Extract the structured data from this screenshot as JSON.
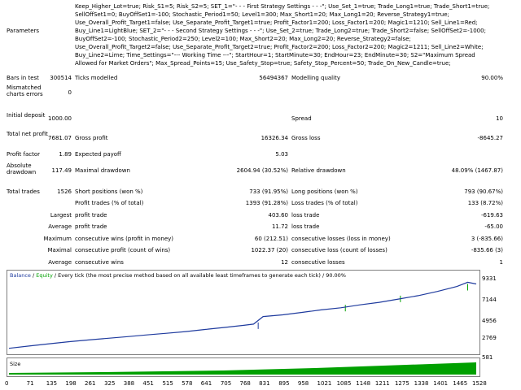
{
  "parameters": {
    "label": "Parameters",
    "lines": [
      "Keep_Higher_Lot=true; Risk_S1=5; Risk_S2=5; SET_1=\"- - - First Strategy Settings - - -\"; Use_Set_1=true; Trade_Long1=true; Trade_Short1=true;",
      "SellOffSet1=0; BuyOffSet1=-100; Stochastic_Period1=50; Level1=300; Max_Short1=20; Max_Long1=20; Reverse_Strategy1=true;",
      "Use_Overall_Profit_Target1=false; Use_Separate_Profit_Target1=true; Profit_Factor1=200; Loss_Factor1=200; Magic1=1210; Sell_Line1=Red;",
      "Buy_Line1=LightBlue; SET_2=\"- - - Second Strategy Settings - - -\"; Use_Set_2=true; Trade_Long2=true; Trade_Short2=false; SellOffSet2=-1000;",
      "BuyOffSet2=-100; Stochastic_Period2=250; Level2=100; Max_Short2=20; Max_Long2=20; Reverse_Strategy2=false;",
      "Use_Overall_Profit_Target2=false; Use_Separate_Profit_Target2=true; Profit_Factor2=200; Loss_Factor2=200; Magic2=1211; Sell_Line2=White;",
      "Buy_Line2=Lime; Time_Settings=\"--- Working Time ---\"; StartHour=1; StartMinute=30; EndHour=23; EndMinute=30; S2=\"Maximum Spread",
      "Allowed for Market Orders\"; Max_Spread_Points=15; Use_Safety_Stop=true; Safety_Stop_Percent=50; Trade_On_New_Candle=true;"
    ]
  },
  "stats": {
    "bars_in_test_label": "Bars in test",
    "bars_in_test": "300514",
    "ticks_modelled_label": "Ticks modelled",
    "ticks_modelled": "56494367",
    "modelling_quality_label": "Modelling quality",
    "modelling_quality": "90.00%",
    "mismatched_label": "Mismatched charts errors",
    "mismatched": "0",
    "initial_deposit_label": "Initial deposit",
    "initial_deposit": "1000.00",
    "spread_label": "Spread",
    "spread": "10",
    "total_net_profit_label": "Total net profit",
    "total_net_profit": "7681.07",
    "gross_profit_label": "Gross profit",
    "gross_profit": "16326.34",
    "gross_loss_label": "Gross loss",
    "gross_loss": "-8645.27",
    "profit_factor_label": "Profit factor",
    "profit_factor": "1.89",
    "expected_payoff_label": "Expected payoff",
    "expected_payoff": "5.03",
    "absolute_drawdown_label": "Absolute drawdown",
    "absolute_drawdown": "117.49",
    "maximal_drawdown_label": "Maximal drawdown",
    "maximal_drawdown": "2604.94 (30.52%)",
    "relative_drawdown_label": "Relative drawdown",
    "relative_drawdown": "48.09% (1467.87)",
    "total_trades_label": "Total trades",
    "total_trades": "1526",
    "short_positions_label": "Short positions (won %)",
    "short_positions": "733 (91.95%)",
    "long_positions_label": "Long positions (won %)",
    "long_positions": "793 (90.67%)",
    "profit_trades_label": "Profit trades (% of total)",
    "profit_trades": "1393 (91.28%)",
    "loss_trades_label": "Loss trades (% of total)",
    "loss_trades": "133 (8.72%)",
    "largest_label": "Largest",
    "largest_profit_label": "profit trade",
    "largest_profit": "403.60",
    "largest_loss_label": "loss trade",
    "largest_loss": "-619.63",
    "average_label": "Average",
    "average_profit_label": "profit trade",
    "average_profit": "11.72",
    "average_loss_label": "loss trade",
    "average_loss": "-65.00",
    "maximum_label": "Maximum",
    "max_cons_wins_label": "consecutive wins (profit in money)",
    "max_cons_wins": "60 (212.51)",
    "max_cons_losses_label": "consecutive losses (loss in money)",
    "max_cons_losses": "3 (-835.66)",
    "maximal_label": "Maximal",
    "maximal_cons_profit_label": "consecutive profit (count of wins)",
    "maximal_cons_profit": "1022.37 (20)",
    "maximal_cons_loss_label": "consecutive loss (count of losses)",
    "maximal_cons_loss": "-835.66 (3)",
    "average2_label": "Average",
    "avg_cons_wins_label": "consecutive wins",
    "avg_cons_wins": "12",
    "avg_cons_losses_label": "consecutive losses",
    "avg_cons_losses": "1"
  },
  "chart_data": {
    "type": "line",
    "legend_balance": "Balance",
    "legend_sep1": " / ",
    "legend_equity": "Equity",
    "legend_rest": " / Every tick (the most precise method based on all available least timeframes to generate each tick) / 90.00%",
    "y_ticks": [
      "9331",
      "7144",
      "4956",
      "2769",
      "581"
    ],
    "x_ticks": [
      "0",
      "71",
      "135",
      "198",
      "261",
      "325",
      "388",
      "451",
      "515",
      "578",
      "641",
      "705",
      "768",
      "831",
      "895",
      "958",
      "1021",
      "1085",
      "1148",
      "1211",
      "1275",
      "1338",
      "1401",
      "1465",
      "1528"
    ],
    "x": [
      0,
      71,
      135,
      198,
      261,
      325,
      388,
      451,
      515,
      578,
      641,
      705,
      768,
      800,
      831,
      895,
      958,
      1021,
      1085,
      1148,
      1211,
      1275,
      1338,
      1401,
      1465,
      1500,
      1528
    ],
    "balance": [
      1000,
      1300,
      1550,
      1800,
      2000,
      2200,
      2400,
      2600,
      2800,
      3000,
      3250,
      3500,
      3750,
      3900,
      4800,
      5000,
      5300,
      5600,
      5850,
      6200,
      6500,
      6900,
      7300,
      7800,
      8400,
      8900,
      8700
    ],
    "size_label": "Size",
    "colors": {
      "balance": "#1f3b9e",
      "equity": "#00a000",
      "size": "#00a000",
      "legend_balance": "#1f3b9e",
      "legend_equity": "#00a000"
    }
  }
}
